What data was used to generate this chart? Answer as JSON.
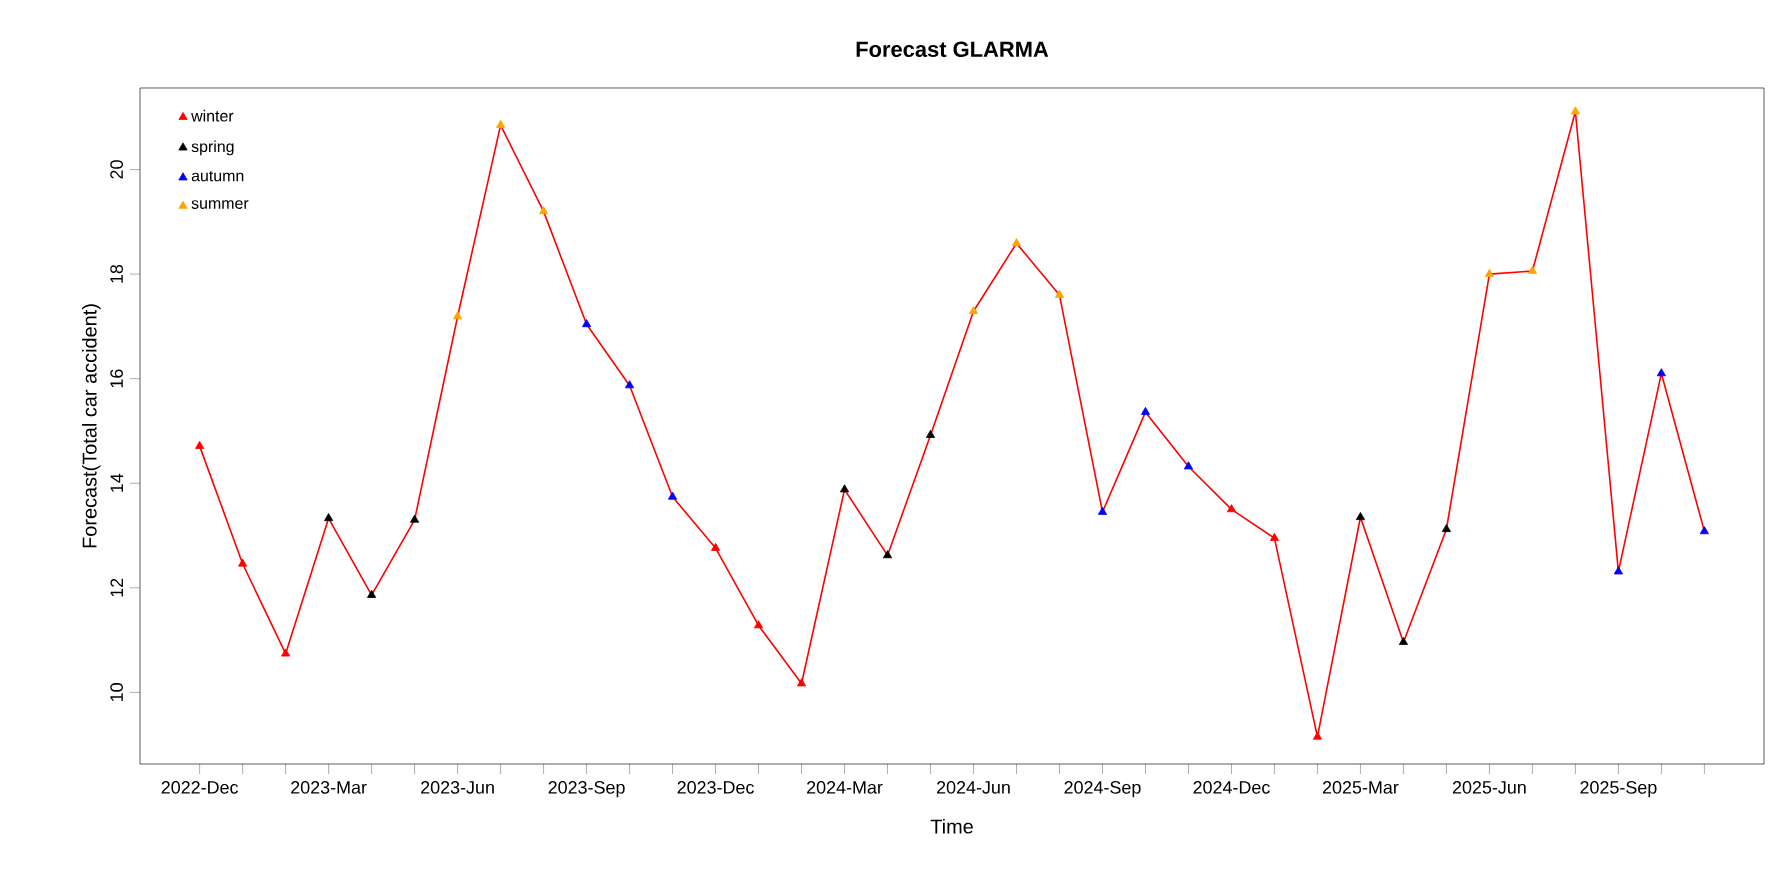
{
  "chart_data": {
    "type": "line",
    "title": "Forecast GLARMA",
    "xlabel": "Time",
    "ylabel": "Forecast(Total car accident)",
    "x": [
      "2022-12",
      "2023-01",
      "2023-02",
      "2023-03",
      "2023-04",
      "2023-05",
      "2023-06",
      "2023-07",
      "2023-08",
      "2023-09",
      "2023-10",
      "2023-11",
      "2023-12",
      "2024-01",
      "2024-02",
      "2024-03",
      "2024-04",
      "2024-05",
      "2024-06",
      "2024-07",
      "2024-08",
      "2024-09",
      "2024-10",
      "2024-11",
      "2024-12",
      "2025-01",
      "2025-02",
      "2025-03",
      "2025-04",
      "2025-05",
      "2025-06",
      "2025-07",
      "2025-08",
      "2025-09",
      "2025-10",
      "2025-11"
    ],
    "series": [
      {
        "color": "#ff0000",
        "marker": "none",
        "values": [
          14.71,
          12.46,
          10.74,
          13.33,
          11.86,
          13.3,
          17.19,
          20.85,
          19.2,
          17.04,
          15.87,
          13.74,
          12.76,
          11.28,
          10.17,
          13.88,
          12.62,
          14.92,
          17.29,
          18.59,
          17.6,
          13.45,
          15.36,
          14.32,
          13.5,
          12.95,
          9.15,
          13.35,
          10.96,
          13.12,
          18.0,
          18.06,
          21.11,
          12.31,
          16.1,
          13.08
        ]
      },
      {
        "type": "scatter",
        "name": "winter",
        "color": "#ff0000",
        "marker": "triangle",
        "x": [
          "2022-12",
          "2023-01",
          "2023-02",
          "2023-12",
          "2024-01",
          "2024-02",
          "2024-12",
          "2025-01",
          "2025-02"
        ],
        "values": [
          14.71,
          12.46,
          10.74,
          12.76,
          11.28,
          10.17,
          13.5,
          12.95,
          9.15
        ]
      },
      {
        "type": "scatter",
        "name": "spring",
        "color": "#000000",
        "marker": "triangle",
        "x": [
          "2023-03",
          "2023-04",
          "2023-05",
          "2024-03",
          "2024-04",
          "2024-05",
          "2025-03",
          "2025-04",
          "2025-05"
        ],
        "values": [
          13.33,
          11.86,
          13.3,
          13.88,
          12.62,
          14.92,
          13.35,
          10.96,
          13.12
        ]
      },
      {
        "type": "scatter",
        "name": "autumn",
        "color": "#0000ff",
        "marker": "triangle",
        "x": [
          "2023-09",
          "2023-10",
          "2023-11",
          "2024-09",
          "2024-10",
          "2024-11",
          "2025-09",
          "2025-10",
          "2025-11"
        ],
        "values": [
          17.04,
          15.87,
          13.74,
          13.45,
          15.36,
          14.32,
          12.31,
          16.1,
          13.08
        ]
      },
      {
        "type": "scatter",
        "name": "summer",
        "color": "#ffa500",
        "marker": "triangle",
        "x": [
          "2023-06",
          "2023-07",
          "2023-08",
          "2024-06",
          "2024-07",
          "2024-08",
          "2025-06",
          "2025-07",
          "2025-08"
        ],
        "values": [
          17.19,
          20.85,
          19.2,
          17.29,
          18.59,
          17.6,
          18.0,
          18.06,
          21.11
        ]
      }
    ],
    "xlim": [
      "2022-10-20",
      "2025-12-13"
    ],
    "ylim": [
      8.63,
      21.56
    ],
    "xticks": [
      {
        "value": "2022-12",
        "label": "2022-Dec"
      },
      {
        "value": "2023-01",
        "label": null
      },
      {
        "value": "2023-02",
        "label": null
      },
      {
        "value": "2023-03",
        "label": "2023-Mar"
      },
      {
        "value": "2023-04",
        "label": null
      },
      {
        "value": "2023-05",
        "label": null
      },
      {
        "value": "2023-06",
        "label": "2023-Jun"
      },
      {
        "value": "2023-07",
        "label": null
      },
      {
        "value": "2023-08",
        "label": null
      },
      {
        "value": "2023-09",
        "label": "2023-Sep"
      },
      {
        "value": "2023-10",
        "label": null
      },
      {
        "value": "2023-11",
        "label": null
      },
      {
        "value": "2023-12",
        "label": "2023-Dec"
      },
      {
        "value": "2024-01",
        "label": null
      },
      {
        "value": "2024-02",
        "label": null
      },
      {
        "value": "2024-03",
        "label": "2024-Mar"
      },
      {
        "value": "2024-04",
        "label": null
      },
      {
        "value": "2024-05",
        "label": null
      },
      {
        "value": "2024-06",
        "label": "2024-Jun"
      },
      {
        "value": "2024-07",
        "label": null
      },
      {
        "value": "2024-08",
        "label": null
      },
      {
        "value": "2024-09",
        "label": "2024-Sep"
      },
      {
        "value": "2024-10",
        "label": null
      },
      {
        "value": "2024-11",
        "label": null
      },
      {
        "value": "2024-12",
        "label": "2024-Dec"
      },
      {
        "value": "2025-01",
        "label": null
      },
      {
        "value": "2025-02",
        "label": null
      },
      {
        "value": "2025-03",
        "label": "2025-Mar"
      },
      {
        "value": "2025-04",
        "label": null
      },
      {
        "value": "2025-05",
        "label": null
      },
      {
        "value": "2025-06",
        "label": "2025-Jun"
      },
      {
        "value": "2025-07",
        "label": null
      },
      {
        "value": "2025-08",
        "label": null
      },
      {
        "value": "2025-09",
        "label": "2025-Sep"
      },
      {
        "value": "2025-10",
        "label": null
      },
      {
        "value": "2025-11",
        "label": null
      }
    ],
    "yticks": [
      10,
      12,
      14,
      16,
      18,
      20
    ],
    "legend": "top left"
  }
}
